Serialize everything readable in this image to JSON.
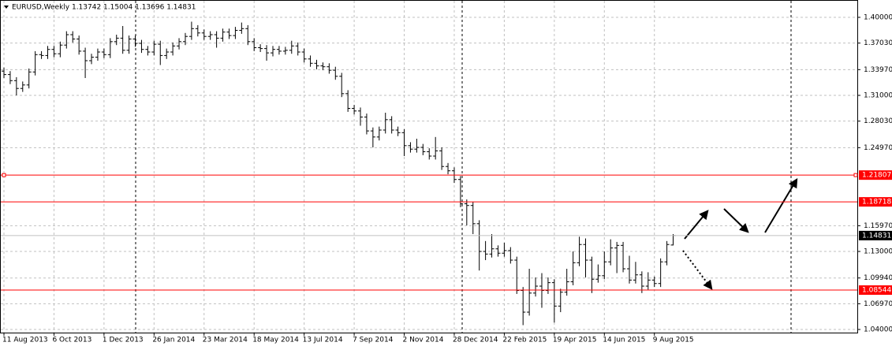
{
  "chart_data": {
    "type": "ohlc",
    "title": "EURUSD,Weekly  1.13742 1.15004 1.13696 1.14831",
    "categories": [
      "11 Aug 2013",
      null,
      null,
      null,
      null,
      null,
      null,
      null,
      "6 Oct 2013",
      null,
      null,
      null,
      null,
      null,
      null,
      null,
      "1 Dec 2013",
      null,
      null,
      null,
      null,
      null,
      null,
      null,
      "26 Jan 2014",
      null,
      null,
      null,
      null,
      null,
      null,
      null,
      "23 Mar 2014",
      null,
      null,
      null,
      null,
      null,
      null,
      null,
      "18 May 2014",
      null,
      null,
      null,
      null,
      null,
      null,
      null,
      "13 Jul 2014",
      null,
      null,
      null,
      null,
      null,
      null,
      null,
      "7 Sep 2014",
      null,
      null,
      null,
      null,
      null,
      null,
      null,
      "2 Nov 2014",
      null,
      null,
      null,
      null,
      null,
      null,
      null,
      "28 Dec 2014",
      null,
      null,
      null,
      null,
      null,
      null,
      null,
      "22 Feb 2015",
      null,
      null,
      null,
      null,
      null,
      null,
      null,
      "19 Apr 2015",
      null,
      null,
      null,
      null,
      null,
      null,
      null,
      "14 Jun 2015",
      null,
      null,
      null,
      null,
      null,
      null,
      null,
      "9 Aug 2015",
      null,
      null,
      null
    ],
    "open": [
      1.338,
      1.334,
      1.327,
      1.318,
      1.322,
      1.337,
      1.357,
      1.356,
      1.363,
      1.358,
      1.368,
      1.38,
      1.375,
      1.361,
      1.35,
      1.354,
      1.36,
      1.357,
      1.372,
      1.376,
      1.362,
      1.375,
      1.37,
      1.363,
      1.36,
      1.369,
      1.356,
      1.36,
      1.367,
      1.372,
      1.378,
      1.387,
      1.382,
      1.378,
      1.38,
      1.376,
      1.383,
      1.379,
      1.385,
      1.387,
      1.372,
      1.365,
      1.364,
      1.359,
      1.363,
      1.361,
      1.362,
      1.367,
      1.36,
      1.352,
      1.347,
      1.344,
      1.343,
      1.339,
      1.332,
      1.312,
      1.295,
      1.292,
      1.285,
      1.269,
      1.262,
      1.27,
      1.282,
      1.27,
      1.267,
      1.252,
      1.248,
      1.25,
      1.245,
      1.24,
      1.246,
      1.228,
      1.223,
      1.213,
      1.185,
      1.183,
      1.162,
      1.13,
      1.127,
      1.133,
      1.128,
      1.131,
      1.12,
      1.085,
      1.06,
      1.082,
      1.09,
      1.085,
      1.094,
      1.067,
      1.083,
      1.095,
      1.117,
      1.138,
      1.12,
      1.098,
      1.102,
      1.118,
      1.134,
      1.137,
      1.11,
      1.097,
      1.103,
      1.09,
      1.097,
      1.093,
      1.118,
      1.13742
    ],
    "high": [
      1.342,
      1.338,
      1.331,
      1.326,
      1.341,
      1.361,
      1.361,
      1.367,
      1.367,
      1.372,
      1.384,
      1.384,
      1.379,
      1.365,
      1.358,
      1.364,
      1.364,
      1.376,
      1.38,
      1.39,
      1.379,
      1.379,
      1.374,
      1.367,
      1.373,
      1.373,
      1.364,
      1.371,
      1.376,
      1.382,
      1.395,
      1.391,
      1.386,
      1.384,
      1.384,
      1.387,
      1.387,
      1.389,
      1.394,
      1.391,
      1.376,
      1.369,
      1.368,
      1.367,
      1.367,
      1.366,
      1.373,
      1.371,
      1.364,
      1.356,
      1.351,
      1.348,
      1.347,
      1.343,
      1.336,
      1.316,
      1.299,
      1.296,
      1.289,
      1.273,
      1.274,
      1.29,
      1.286,
      1.274,
      1.271,
      1.256,
      1.26,
      1.254,
      1.249,
      1.262,
      1.25,
      1.232,
      1.227,
      1.217,
      1.19,
      1.187,
      1.166,
      1.142,
      1.15,
      1.137,
      1.14,
      1.135,
      1.124,
      1.089,
      1.11,
      1.1,
      1.105,
      1.1,
      1.098,
      1.087,
      1.11,
      1.13,
      1.147,
      1.145,
      1.124,
      1.115,
      1.13,
      1.144,
      1.141,
      1.141,
      1.125,
      1.118,
      1.107,
      1.106,
      1.101,
      1.122,
      1.142,
      1.15004
    ],
    "low": [
      1.33,
      1.323,
      1.31,
      1.314,
      1.318,
      1.333,
      1.352,
      1.352,
      1.354,
      1.354,
      1.364,
      1.371,
      1.357,
      1.33,
      1.346,
      1.35,
      1.353,
      1.353,
      1.368,
      1.358,
      1.358,
      1.366,
      1.359,
      1.356,
      1.356,
      1.345,
      1.352,
      1.356,
      1.363,
      1.368,
      1.374,
      1.378,
      1.374,
      1.374,
      1.365,
      1.372,
      1.375,
      1.375,
      1.381,
      1.368,
      1.361,
      1.36,
      1.35,
      1.355,
      1.357,
      1.357,
      1.358,
      1.356,
      1.348,
      1.343,
      1.34,
      1.339,
      1.335,
      1.328,
      1.308,
      1.291,
      1.288,
      1.275,
      1.265,
      1.25,
      1.258,
      1.266,
      1.266,
      1.263,
      1.24,
      1.244,
      1.244,
      1.241,
      1.236,
      1.236,
      1.224,
      1.219,
      1.209,
      1.181,
      1.16,
      1.15,
      1.108,
      1.12,
      1.123,
      1.124,
      1.124,
      1.116,
      1.081,
      1.045,
      1.056,
      1.078,
      1.065,
      1.081,
      1.048,
      1.06,
      1.079,
      1.091,
      1.113,
      1.1,
      1.082,
      1.094,
      1.098,
      1.114,
      1.105,
      1.106,
      1.093,
      1.093,
      1.082,
      1.086,
      1.089,
      1.089,
      1.114,
      1.13696
    ],
    "close": [
      1.334,
      1.327,
      1.318,
      1.322,
      1.337,
      1.357,
      1.356,
      1.363,
      1.358,
      1.368,
      1.38,
      1.375,
      1.361,
      1.35,
      1.354,
      1.36,
      1.357,
      1.372,
      1.376,
      1.362,
      1.375,
      1.37,
      1.363,
      1.36,
      1.369,
      1.356,
      1.36,
      1.367,
      1.372,
      1.378,
      1.387,
      1.382,
      1.378,
      1.38,
      1.376,
      1.383,
      1.379,
      1.385,
      1.387,
      1.372,
      1.365,
      1.364,
      1.359,
      1.363,
      1.361,
      1.362,
      1.367,
      1.36,
      1.352,
      1.347,
      1.344,
      1.343,
      1.339,
      1.332,
      1.312,
      1.295,
      1.292,
      1.285,
      1.269,
      1.262,
      1.27,
      1.282,
      1.27,
      1.267,
      1.252,
      1.248,
      1.25,
      1.245,
      1.24,
      1.246,
      1.228,
      1.223,
      1.213,
      1.185,
      1.183,
      1.162,
      1.13,
      1.127,
      1.133,
      1.128,
      1.131,
      1.12,
      1.085,
      1.06,
      1.082,
      1.09,
      1.085,
      1.094,
      1.067,
      1.083,
      1.095,
      1.117,
      1.138,
      1.12,
      1.098,
      1.102,
      1.118,
      1.134,
      1.137,
      1.11,
      1.097,
      1.103,
      1.09,
      1.097,
      1.093,
      1.118,
      1.138,
      1.14831
    ],
    "color": "#000000",
    "ylim": [
      1.0364,
      1.42
    ],
    "yticks": [
      {
        "value": 1.4,
        "label": "1.40000"
      },
      {
        "value": 1.3703,
        "label": "1.37030"
      },
      {
        "value": 1.3397,
        "label": "1.33970"
      },
      {
        "value": 1.31,
        "label": "1.31000"
      },
      {
        "value": 1.2803,
        "label": "1.28030"
      },
      {
        "value": 1.2497,
        "label": "1.24970"
      },
      {
        "value": 1.1597,
        "label": "1.15970"
      },
      {
        "value": 1.13,
        "label": "1.13000"
      },
      {
        "value": 1.0994,
        "label": "1.09940"
      },
      {
        "value": 1.0697,
        "label": "1.06970"
      },
      {
        "value": 1.04,
        "label": "1.04000"
      }
    ],
    "hlines": [
      {
        "value": 1.21807,
        "label": "1.21807",
        "color": "#ff0000"
      },
      {
        "value": 1.18718,
        "label": "1.18718",
        "color": "#ff0000"
      },
      {
        "value": 1.08544,
        "label": "1.08544",
        "color": "#ff0000"
      }
    ],
    "last_price": {
      "value": 1.14831,
      "label": "1.14831",
      "color": "#c0c0c0"
    },
    "grid": true
  }
}
